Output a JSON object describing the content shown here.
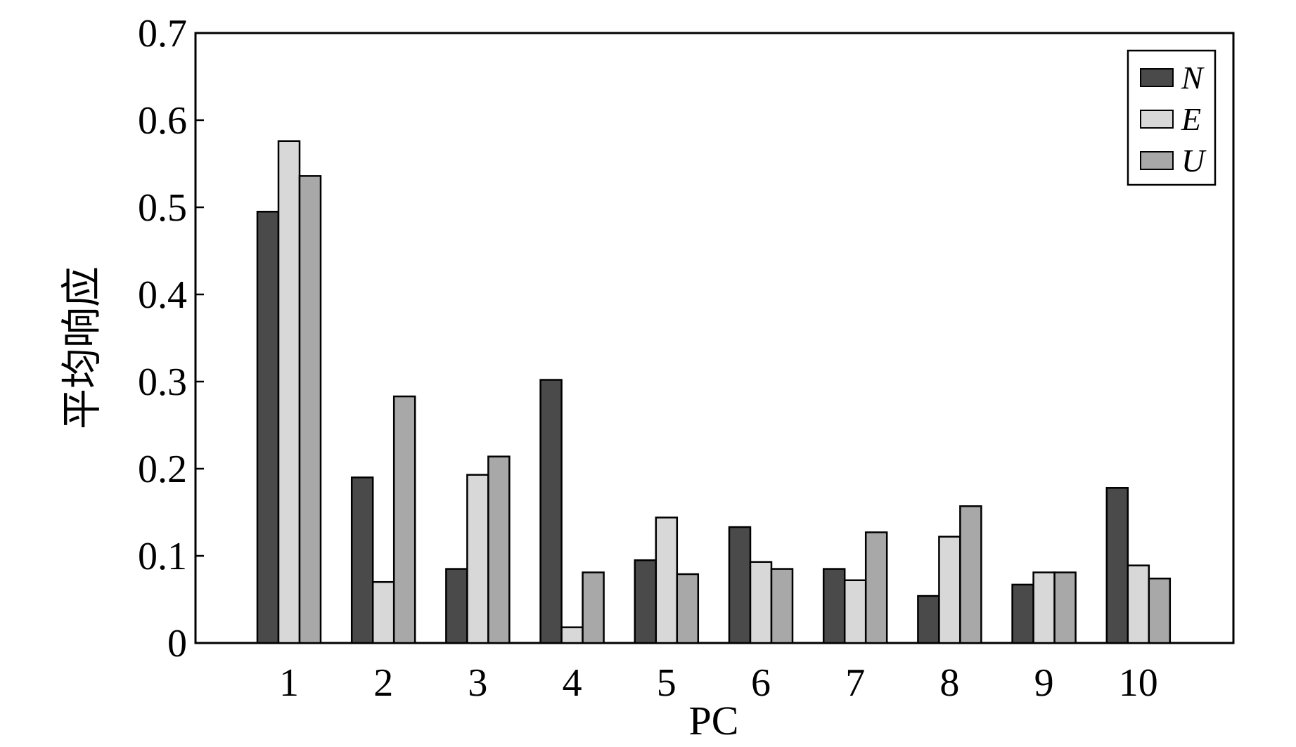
{
  "chart_data": {
    "type": "bar",
    "categories": [
      "1",
      "2",
      "3",
      "4",
      "5",
      "6",
      "7",
      "8",
      "9",
      "10"
    ],
    "series": [
      {
        "name": "N",
        "color": "#4a4a4a",
        "values": [
          0.495,
          0.19,
          0.085,
          0.302,
          0.095,
          0.133,
          0.085,
          0.054,
          0.067,
          0.178
        ]
      },
      {
        "name": "E",
        "color": "#d8d8d8",
        "values": [
          0.576,
          0.07,
          0.193,
          0.018,
          0.144,
          0.093,
          0.072,
          0.122,
          0.081,
          0.089
        ]
      },
      {
        "name": "U",
        "color": "#a8a8a8",
        "values": [
          0.536,
          0.283,
          0.214,
          0.081,
          0.079,
          0.085,
          0.127,
          0.157,
          0.081,
          0.074
        ]
      }
    ],
    "xlabel": "PC",
    "ylabel": "平均响应",
    "ylim": [
      0,
      0.7
    ],
    "yticks": [
      "0",
      "0.1",
      "0.2",
      "0.3",
      "0.4",
      "0.5",
      "0.6",
      "0.7"
    ],
    "grid": false,
    "legend_position": "top-right"
  }
}
